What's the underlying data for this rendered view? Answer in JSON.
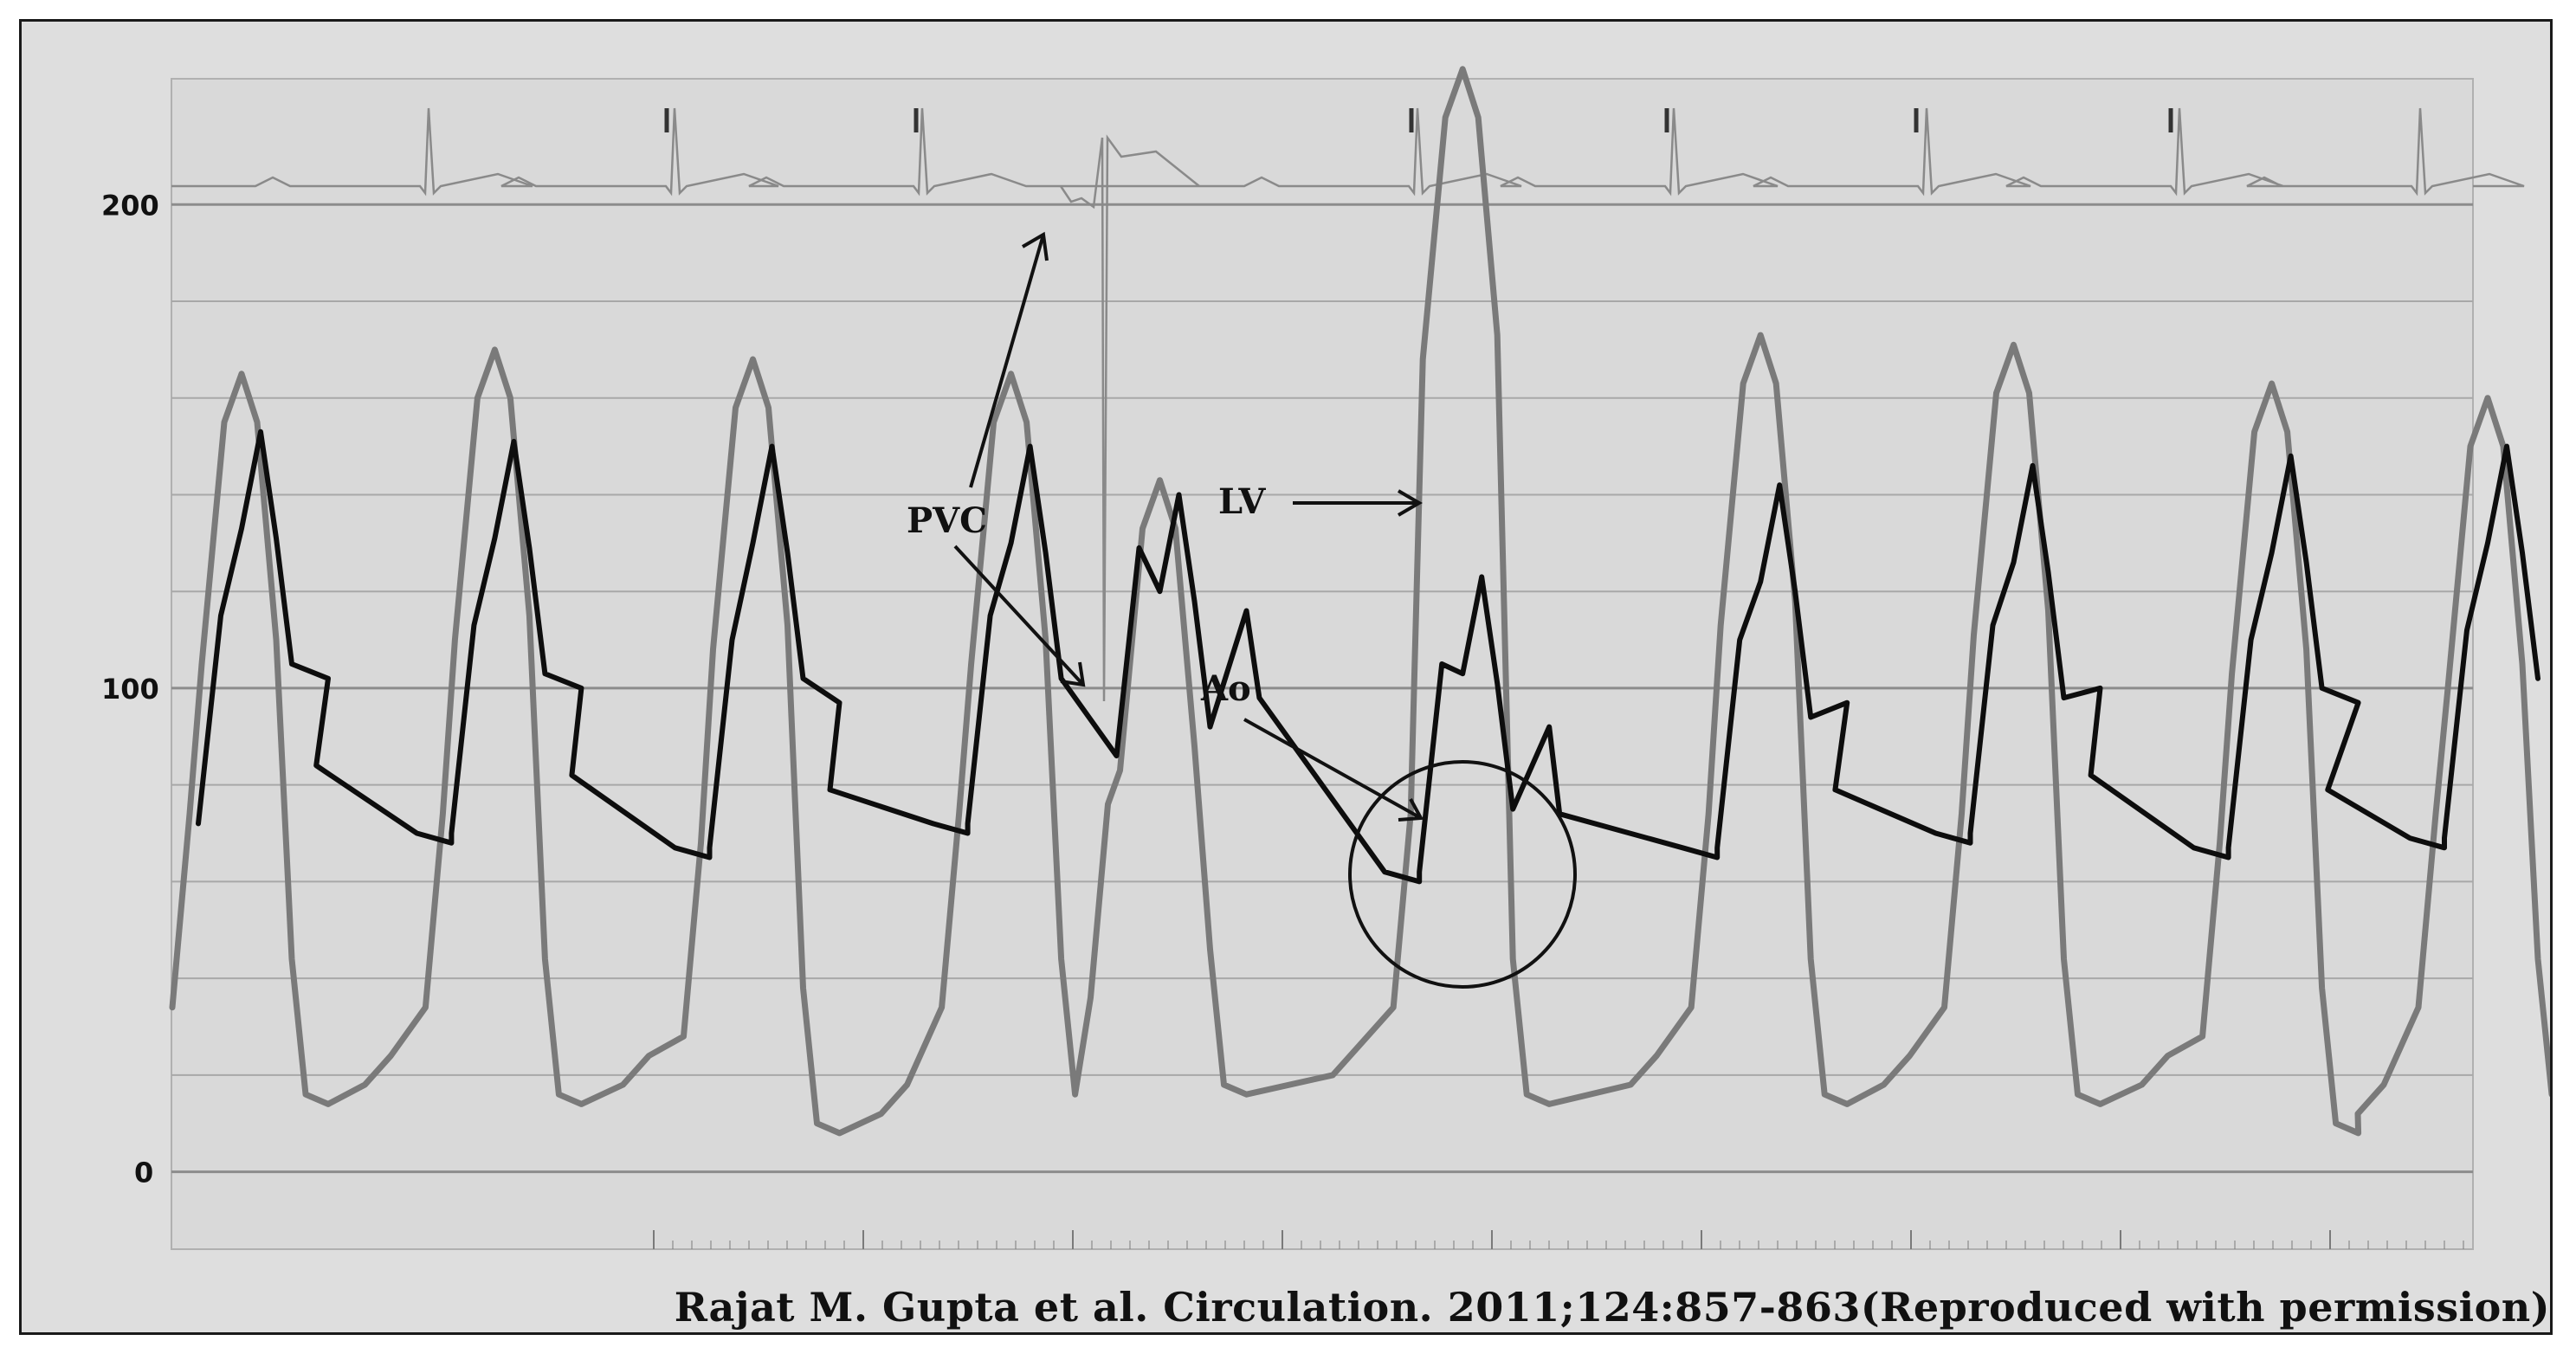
{
  "citation": "Rajat M. Gupta et al. Circulation. 2011;124:857-863(Reproduced with permission)",
  "colors": {
    "background": "#dedede",
    "ecg": "#8a8a8a",
    "lv": "#7a7a7a",
    "ao": "#0d0d0d",
    "grid": "#a8a8a8",
    "text": "#111111"
  },
  "chart_data": {
    "type": "line",
    "y_ticks": [
      0,
      100,
      200
    ],
    "ylim": [
      -16,
      226
    ],
    "grid_y": [
      0,
      20,
      40,
      60,
      80,
      100,
      120,
      140,
      160,
      180,
      200
    ],
    "x_unit": "s",
    "xlim": [
      0,
      9.2
    ],
    "annotations": {
      "pvc": "PVC",
      "lv": "LV",
      "ao": "Ao"
    },
    "series": [
      {
        "name": "LV",
        "role": "lv",
        "beats": [
          {
            "t": 0.0,
            "peak": 165,
            "edp": 14
          },
          {
            "t": 1.02,
            "peak": 170,
            "edp": 14
          },
          {
            "t": 2.06,
            "peak": 168,
            "edp": 8
          },
          {
            "t": 3.1,
            "peak": 165,
            "edp": 14
          },
          {
            "t": 3.7,
            "peak": 143,
            "edp": 16
          },
          {
            "t": 4.92,
            "peak": 228,
            "edp": 14
          },
          {
            "t": 6.12,
            "peak": 173,
            "edp": 14
          },
          {
            "t": 7.14,
            "peak": 171,
            "edp": 14
          },
          {
            "t": 8.18,
            "peak": 163,
            "edp": 8
          },
          {
            "t": 9.05,
            "peak": 160,
            "edp": 14
          }
        ]
      },
      {
        "name": "Ao",
        "role": "ao",
        "beats": [
          {
            "t": 0.0,
            "peak": 153,
            "dia": 70
          },
          {
            "t": 1.02,
            "peak": 151,
            "dia": 68
          },
          {
            "t": 2.06,
            "peak": 150,
            "dia": 65
          },
          {
            "t": 3.1,
            "peak": 150,
            "dia": 70
          },
          {
            "t": 3.7,
            "peak": 140,
            "dia": 84
          },
          {
            "t": 4.92,
            "peak": 123,
            "dia": 60
          },
          {
            "t": 6.12,
            "peak": 142,
            "dia": 65
          },
          {
            "t": 7.14,
            "peak": 146,
            "dia": 68
          },
          {
            "t": 8.18,
            "peak": 148,
            "dia": 65
          },
          {
            "t": 9.05,
            "peak": 150,
            "dia": 67
          }
        ]
      }
    ]
  }
}
